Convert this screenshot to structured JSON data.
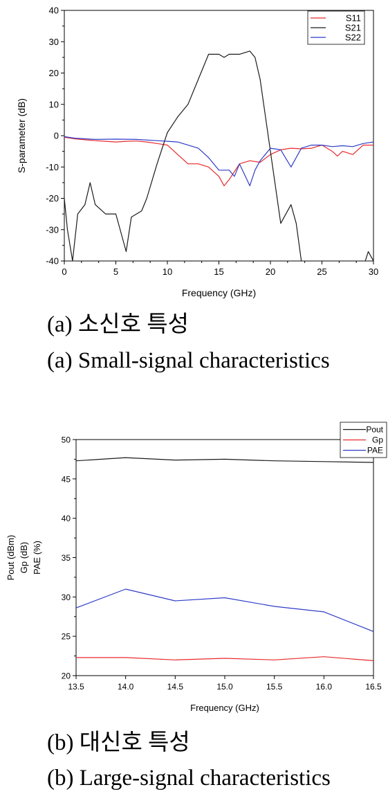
{
  "charts": [
    {
      "xlabel": "Frequency (GHz)",
      "ylabels": [
        "S-parameter (dB)"
      ],
      "xticks": [
        "0",
        "5",
        "10",
        "15",
        "20",
        "25",
        "30"
      ],
      "yticks": [
        "-40",
        "-30",
        "-20",
        "-10",
        "0",
        "10",
        "20",
        "30",
        "40"
      ],
      "legend": [
        "S11",
        "S21",
        "S22"
      ]
    },
    {
      "xlabel": "Frequency (GHz)",
      "ylabels": [
        "Pout (dBm)",
        "Gp (dB)",
        "PAE (%)"
      ],
      "xticks": [
        "13.5",
        "14.0",
        "14.5",
        "15.0",
        "15.5",
        "16.0",
        "16.5"
      ],
      "yticks": [
        "20",
        "25",
        "30",
        "35",
        "40",
        "45",
        "50"
      ],
      "legend": [
        "Pout",
        "Gp",
        "PAE"
      ]
    }
  ],
  "captions": {
    "a_korean": "(a) 소신호 특성",
    "a_english": "(a) Small-signal characteristics",
    "b_korean": "(b) 대신호 특성",
    "b_english": "(b) Large-signal characteristics"
  },
  "chart_data": [
    {
      "type": "line",
      "xlabel": "Frequency (GHz)",
      "ylabel": "S-parameter (dB)",
      "xlim": [
        0,
        30
      ],
      "ylim": [
        -40,
        40
      ],
      "grid": false,
      "legend_position": "top-right",
      "series": [
        {
          "name": "S11",
          "color": "#e8292c",
          "x": [
            0,
            1,
            2,
            3,
            4,
            5,
            6,
            7,
            8,
            9,
            10,
            11,
            12,
            13,
            14,
            15,
            15.5,
            16,
            17,
            18,
            19,
            20,
            21,
            22,
            23,
            24,
            25,
            26,
            26.5,
            27,
            28,
            29,
            30
          ],
          "y": [
            -0.5,
            -1,
            -1.3,
            -1.6,
            -1.8,
            -2,
            -1.8,
            -1.7,
            -2,
            -2.5,
            -3,
            -6,
            -9,
            -9,
            -10,
            -13,
            -16,
            -14,
            -9,
            -8,
            -8.5,
            -6,
            -4.5,
            -4,
            -4.2,
            -4,
            -3,
            -5,
            -6.5,
            -5,
            -6,
            -3,
            -3
          ]
        },
        {
          "name": "S21",
          "color": "#1a1a1a",
          "x": [
            0,
            0.3,
            0.8,
            1.3,
            2,
            2.5,
            3,
            4,
            5,
            6,
            6.5,
            7.5,
            8,
            9,
            10,
            11,
            12,
            13,
            14,
            15,
            15.5,
            16,
            17,
            17.5,
            18,
            18.5,
            19,
            20,
            21,
            22,
            22.5,
            23
          ],
          "y": [
            -20,
            -30,
            -40,
            -25,
            -22,
            -15,
            -22,
            -25,
            -25,
            -37,
            -26,
            -24,
            -20,
            -9,
            1,
            6,
            10,
            18,
            26,
            26,
            25,
            26,
            26,
            26.5,
            27,
            25,
            18,
            -5,
            -28,
            -22,
            -28,
            -40
          ]
        },
        {
          "name": "S21 (segment 2)",
          "color": "#1a1a1a",
          "x": [
            29.2,
            29.5,
            30
          ],
          "y": [
            -40,
            -37,
            -40
          ]
        },
        {
          "name": "S22",
          "color": "#2e3cc8",
          "x": [
            0,
            1,
            2,
            3,
            5,
            7,
            9,
            10,
            11,
            12,
            13,
            14,
            15,
            16,
            16.5,
            17,
            18,
            18.5,
            19,
            20,
            21,
            22,
            23,
            24,
            25,
            26,
            27,
            28,
            29,
            30
          ],
          "y": [
            -0.3,
            -0.8,
            -1,
            -1.2,
            -1.1,
            -1.2,
            -1.6,
            -1.8,
            -2,
            -3,
            -4,
            -7,
            -11,
            -11,
            -13,
            -9,
            -16,
            -11,
            -8,
            -4,
            -4.5,
            -10,
            -4,
            -3,
            -3,
            -3.5,
            -3.2,
            -3.5,
            -2.5,
            -2
          ]
        }
      ]
    },
    {
      "type": "line",
      "xlabel": "Frequency (GHz)",
      "ylabel": "Pout (dBm) / Gp (dB) / PAE (%)",
      "xlim": [
        13.5,
        16.5
      ],
      "ylim": [
        20,
        50
      ],
      "grid": false,
      "legend_position": "top-right",
      "series": [
        {
          "name": "Pout",
          "color": "#1a1a1a",
          "x": [
            13.5,
            14.0,
            14.5,
            15.0,
            15.5,
            16.0,
            16.5
          ],
          "y": [
            47.3,
            47.7,
            47.4,
            47.5,
            47.3,
            47.2,
            47.1
          ]
        },
        {
          "name": "Gp",
          "color": "#e8292c",
          "x": [
            13.5,
            14.0,
            14.5,
            15.0,
            15.5,
            16.0,
            16.5
          ],
          "y": [
            22.3,
            22.3,
            22.0,
            22.2,
            22.0,
            22.4,
            21.9
          ]
        },
        {
          "name": "PAE",
          "color": "#2e3cc8",
          "x": [
            13.5,
            14.0,
            14.5,
            15.0,
            15.5,
            16.0,
            16.5
          ],
          "y": [
            28.6,
            31.0,
            29.5,
            29.9,
            28.8,
            28.1,
            25.6
          ]
        }
      ]
    }
  ]
}
